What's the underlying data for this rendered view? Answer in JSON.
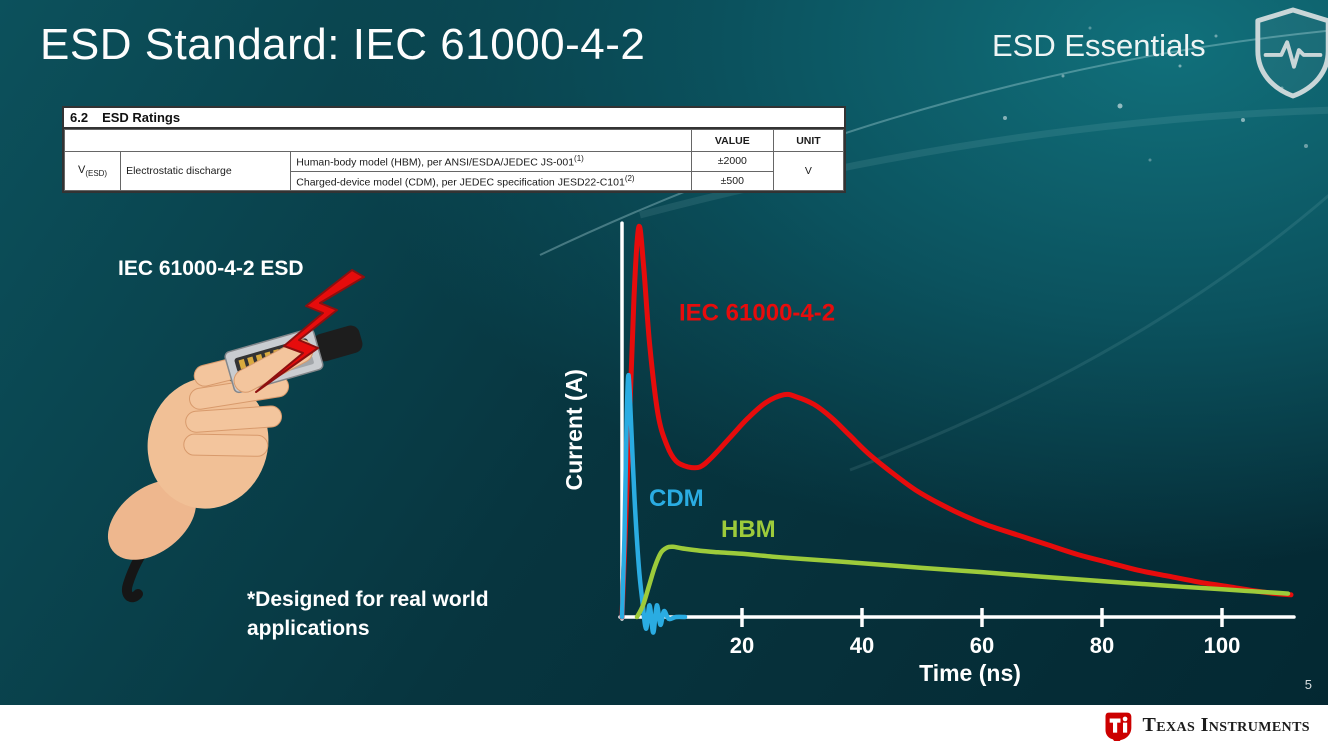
{
  "slide": {
    "title": "ESD Standard: IEC 61000-4-2",
    "brand": "ESD Essentials",
    "page_number": "5",
    "illustration_label": "IEC 61000-4-2 ESD",
    "footnote": "*Designed for real world\napplications"
  },
  "ratings_table": {
    "section_no": "6.2",
    "section_title": "ESD Ratings",
    "headers": {
      "value": "VALUE",
      "unit": "UNIT"
    },
    "symbol": "V",
    "symbol_sub": "(ESD)",
    "parameter": "Electrostatic discharge",
    "rows": [
      {
        "desc": "Human-body model (HBM), per ANSI/ESDA/JEDEC JS-001",
        "sup": "(1)",
        "value": "±2000"
      },
      {
        "desc": "Charged-device model (CDM), per JEDEC specification JESD22-C101",
        "sup": "(2)",
        "value": "±500"
      }
    ],
    "unit": "V"
  },
  "chart_data": {
    "type": "line",
    "title": "",
    "xlabel": "Time (ns)",
    "ylabel": "Current (A)",
    "xlim": [
      0,
      112
    ],
    "x_ticks": [
      20,
      40,
      60,
      80,
      100
    ],
    "y_units": "relative amplitude (y-axis unlabeled)",
    "ylim": [
      -0.05,
      1.05
    ],
    "grid": false,
    "axis_color": "#ffffff",
    "axis_end": 112,
    "series": [
      {
        "name": "IEC 61000-4-2",
        "color": "#e60c0c",
        "width": 5,
        "points": [
          [
            0,
            0
          ],
          [
            1,
            0.4
          ],
          [
            2,
            0.82
          ],
          [
            2.8,
            1.0
          ],
          [
            3.6,
            0.9
          ],
          [
            4.6,
            0.7
          ],
          [
            6,
            0.52
          ],
          [
            7.5,
            0.44
          ],
          [
            9,
            0.4
          ],
          [
            11,
            0.385
          ],
          [
            13,
            0.385
          ],
          [
            15,
            0.41
          ],
          [
            18,
            0.46
          ],
          [
            21,
            0.51
          ],
          [
            24,
            0.55
          ],
          [
            27,
            0.57
          ],
          [
            29,
            0.565
          ],
          [
            32,
            0.545
          ],
          [
            35,
            0.51
          ],
          [
            38,
            0.465
          ],
          [
            41,
            0.42
          ],
          [
            45,
            0.37
          ],
          [
            49,
            0.325
          ],
          [
            53,
            0.29
          ],
          [
            57,
            0.26
          ],
          [
            61,
            0.235
          ],
          [
            66,
            0.21
          ],
          [
            71,
            0.185
          ],
          [
            76,
            0.16
          ],
          [
            81,
            0.14
          ],
          [
            86,
            0.12
          ],
          [
            91,
            0.105
          ],
          [
            96,
            0.09
          ],
          [
            101,
            0.078
          ],
          [
            105,
            0.068
          ],
          [
            109,
            0.06
          ],
          [
            111.5,
            0.057
          ]
        ]
      },
      {
        "name": "CDM",
        "color": "#2aace2",
        "width": 4.5,
        "points": [
          [
            0,
            0
          ],
          [
            0.4,
            0.2
          ],
          [
            0.8,
            0.52
          ],
          [
            1.1,
            0.62
          ],
          [
            1.5,
            0.5
          ],
          [
            2.1,
            0.3
          ],
          [
            2.8,
            0.13
          ],
          [
            3.4,
            0.04
          ],
          [
            4.0,
            -0.03
          ],
          [
            4.6,
            0.03
          ],
          [
            5.2,
            -0.04
          ],
          [
            5.8,
            0.03
          ],
          [
            6.4,
            -0.02
          ],
          [
            7.0,
            0.015
          ],
          [
            7.8,
            -0.005
          ],
          [
            9,
            0
          ],
          [
            10.5,
            0
          ]
        ]
      },
      {
        "name": "HBM",
        "color": "#9dcb3b",
        "width": 4.5,
        "points": [
          [
            2.5,
            0
          ],
          [
            3.5,
            0.03
          ],
          [
            4.5,
            0.08
          ],
          [
            5.5,
            0.13
          ],
          [
            6.5,
            0.165
          ],
          [
            7.5,
            0.178
          ],
          [
            8.5,
            0.18
          ],
          [
            10,
            0.176
          ],
          [
            13,
            0.17
          ],
          [
            16,
            0.166
          ],
          [
            20,
            0.162
          ],
          [
            25,
            0.155
          ],
          [
            30,
            0.149
          ],
          [
            40,
            0.138
          ],
          [
            50,
            0.126
          ],
          [
            60,
            0.115
          ],
          [
            70,
            0.103
          ],
          [
            80,
            0.092
          ],
          [
            90,
            0.081
          ],
          [
            100,
            0.071
          ],
          [
            105,
            0.066
          ],
          [
            109,
            0.062
          ],
          [
            111,
            0.06
          ]
        ]
      }
    ],
    "annotations": [
      {
        "text": "IEC 61000-4-2",
        "color": "#e60c0c",
        "x": 9.5,
        "y": 0.76
      },
      {
        "text": "CDM",
        "color": "#2aace2",
        "x": 4.5,
        "y": 0.285
      },
      {
        "text": "HBM",
        "color": "#9dcb3b",
        "x": 16.5,
        "y": 0.205
      }
    ],
    "legend_position": "inline-annotations"
  },
  "icons": {
    "shield": "shield-with-heartbeat-outline",
    "lightning": "red-lightning-bolt",
    "ti_logo": "texas-instruments-red-bug"
  },
  "footer": {
    "brand": "Texas Instruments"
  }
}
